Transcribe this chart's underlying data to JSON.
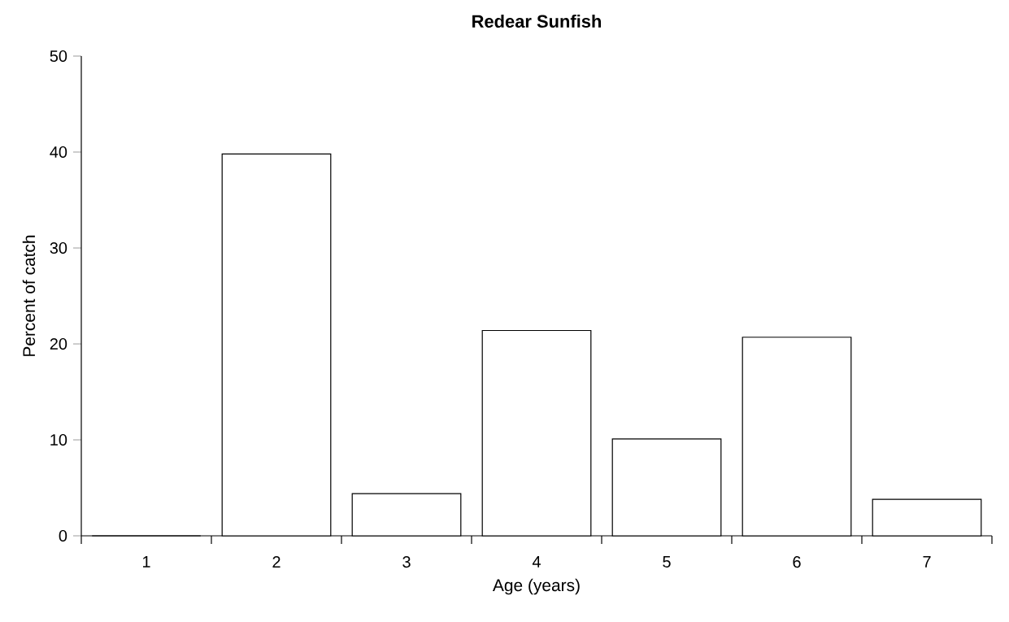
{
  "chart_data": {
    "type": "bar",
    "title": "Redear Sunfish",
    "xlabel": "Age (years)",
    "ylabel": "Percent of catch",
    "categories": [
      "1",
      "2",
      "3",
      "4",
      "5",
      "6",
      "7"
    ],
    "values": [
      0,
      39.8,
      4.4,
      21.4,
      10.1,
      20.7,
      3.8
    ],
    "color": "#ffffff",
    "ylim": [
      0,
      50
    ],
    "yticks": [
      0,
      10,
      20,
      30,
      40,
      50
    ]
  }
}
